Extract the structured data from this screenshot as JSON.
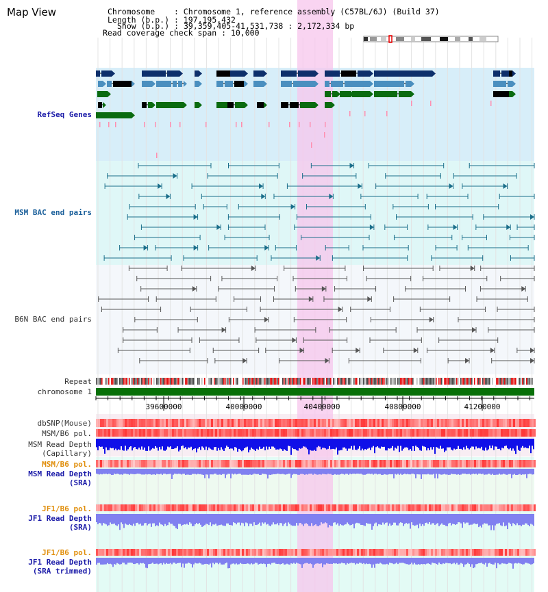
{
  "app": {
    "title": "Map View"
  },
  "info": {
    "chromosome_key": "Chromosome",
    "chromosome_val": "Chromosome 1, reference assembly (C57BL/6J) (Build 37)",
    "length_key": "Length (b.p.)",
    "length_val": "197,195,432",
    "show_key": "Show (b.p.)",
    "show_val": "39,359,405-41,531,738 : 2,172,334 bp",
    "span_key": "Read coverage check span",
    "span_val": "10,000"
  },
  "tracks": {
    "refseq": "RefSeq Genes",
    "msm_bac": "MSM BAC end pairs",
    "b6n_bac": "B6N BAC end pairs",
    "repeat": "Repeat",
    "chromosome": "chromosome 1",
    "dbsnp": "dbSNP(Mouse)",
    "msm_b6_pol": "MSM/B6 pol.",
    "msm_depth_cap_1": "MSM Read Depth",
    "msm_depth_cap_2": "(Capillary)",
    "msm_b6_pol_2": "MSM/B6 pol.",
    "msm_depth_sra_1": "MSM Read Depth",
    "msm_depth_sra_2": "(SRA)",
    "jf1_b6_pol": "JF1/B6 pol.",
    "jf1_depth_sra_1": "JF1 Read Depth",
    "jf1_depth_sra_2": "(SRA)",
    "jf1_b6_pol_2": "JF1/B6 pol.",
    "jf1_depth_trim_1": "JF1 Read Depth",
    "jf1_depth_trim_2": "(SRA trimmed)"
  },
  "axis": {
    "ticks": [
      "39600000",
      "40000000",
      "40400000",
      "40800000",
      "41200000"
    ]
  },
  "colors": {
    "refseq_gene_dark": "#0d2f6b",
    "refseq_gene_light": "#4a8fbf",
    "refseq_gene_green": "#0a6b10",
    "msm_bac": "#1a6e8a",
    "b6n_bac": "#555555",
    "highlight": "#f7c6ec",
    "chromosome_bar": "#087008",
    "depth_blue": "#1010e8",
    "depth_sra": "#8080f0"
  }
}
